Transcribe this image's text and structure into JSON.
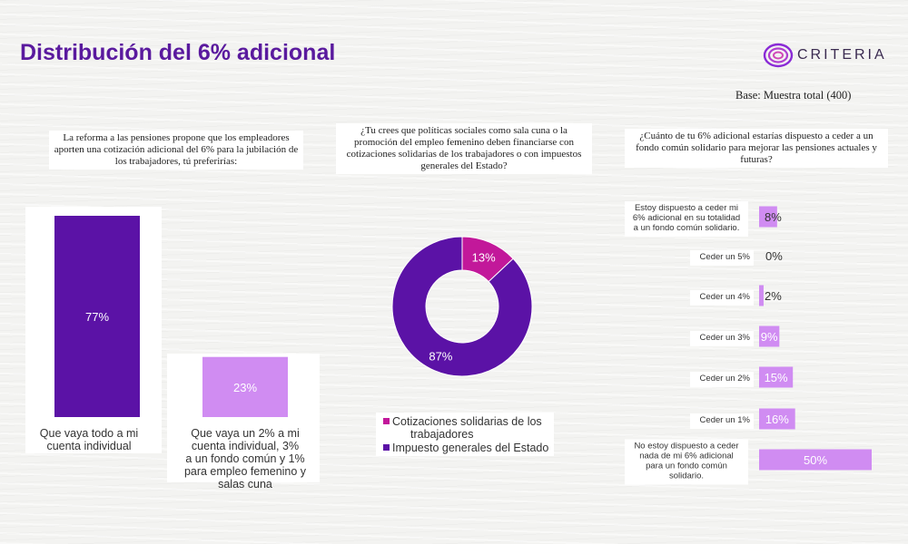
{
  "title": "Distribución del 6% adicional",
  "logo_text": "CRITERIA",
  "base_note": "Base: Muestra total (400)",
  "colors": {
    "dark_purple": "#5b12a6",
    "light_purple": "#d08cf2",
    "magenta": "#c2189a",
    "title_purple": "#5a1a9e"
  },
  "chart_data": [
    {
      "type": "bar",
      "question": "La reforma a las pensiones propone que los empleadores aporten una cotización adicional del 6% para la jubilación de los trabajadores, tú preferirías:",
      "categories": [
        "Que vaya todo a mi cuenta individual",
        "Que vaya un 2% a mi cuenta individual, 3% a un fondo común y 1% para empleo femenino y salas cuna"
      ],
      "values": [
        77,
        23
      ],
      "labels": [
        "77%",
        "23%"
      ],
      "ylim": [
        0,
        77
      ]
    },
    {
      "type": "pie",
      "question": "¿Tu crees que políticas sociales como sala cuna o la promoción del empleo femenino deben financiarse con cotizaciones solidarias de los trabajadores o con impuestos generales del Estado?",
      "series": [
        {
          "name": "Cotizaciones solidarias de los trabajadores",
          "value": 13,
          "label": "13%"
        },
        {
          "name": "Impuesto generales del Estado",
          "value": 87,
          "label": "87%"
        }
      ],
      "legend": "bottom"
    },
    {
      "type": "bar",
      "orientation": "horizontal",
      "question": "¿Cuánto de tu 6% adicional estarías dispuesto a ceder a un fondo común solidario para mejorar las pensiones actuales y futuras?",
      "categories": [
        "Estoy dispuesto a ceder mi 6% adicional en su totalidad a un fondo común solidario.",
        "Ceder un 5%",
        "Ceder un 4%",
        "Ceder un 3%",
        "Ceder un 2%",
        "Ceder un 1%",
        "No estoy dispuesto a ceder nada de mi 6% adicional para un fondo común solidario."
      ],
      "values": [
        8,
        0,
        2,
        9,
        15,
        16,
        50
      ],
      "labels": [
        "8%",
        "0%",
        "2%",
        "9%",
        "15%",
        "16%",
        "50%"
      ],
      "xlim": [
        0,
        50
      ]
    }
  ]
}
